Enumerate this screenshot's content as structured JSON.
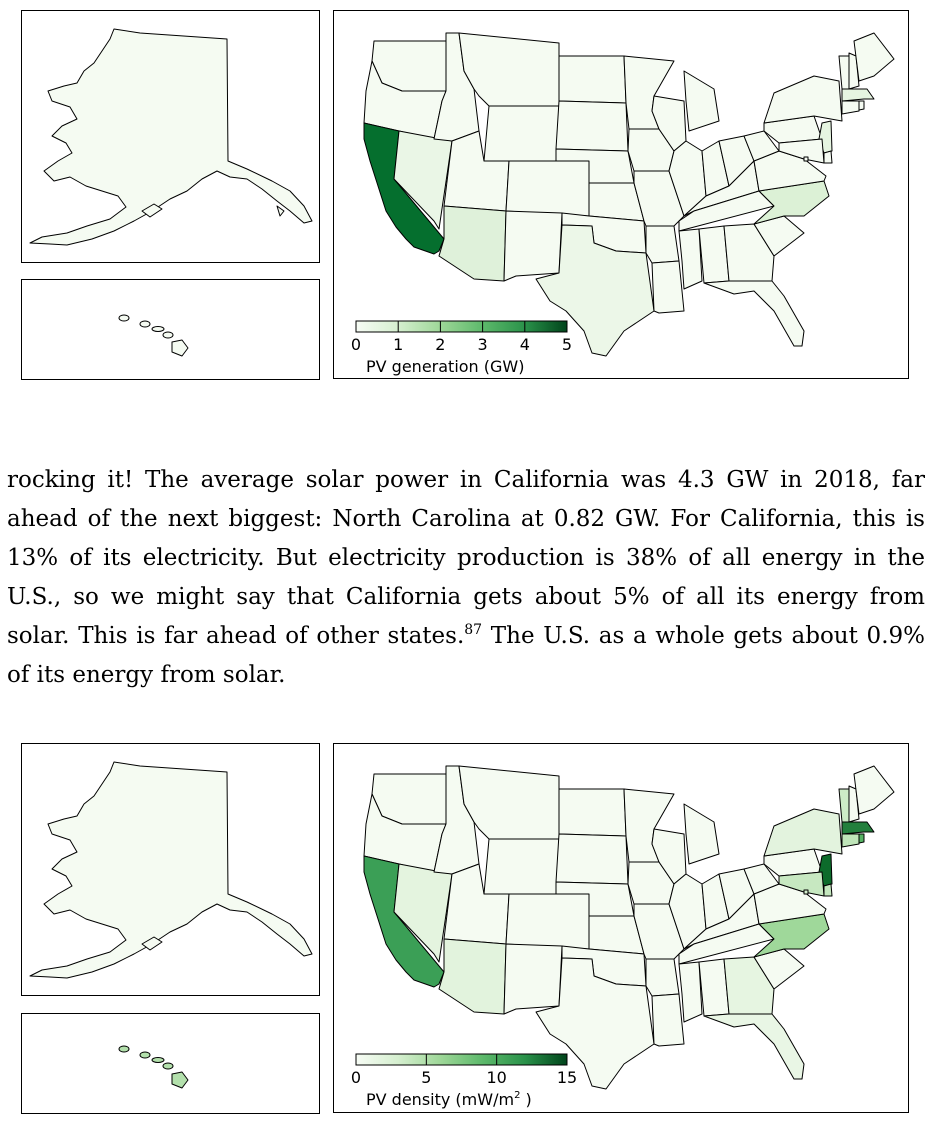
{
  "paragraph": {
    "text_before_note": "rocking it! The average solar power in California was 4.3 GW in 2018, far ahead of the next biggest: North Carolina at 0.82 GW. For California, this is 13% of its electricity. But electricity production is 38% of all energy in the U.S., so we might say that California gets about 5% of all its energy from solar. This is far ahead of other states.",
    "note_ref": "87",
    "text_after_note": " The U.S. as a whole gets about 0.9% of its energy from solar."
  },
  "maps": [
    {
      "colorbar": {
        "ticks": [
          "0",
          "1",
          "2",
          "3",
          "4",
          "5"
        ],
        "label": "PV generation (GW)",
        "min": 0,
        "max": 5,
        "colors": [
          "#f7fcf5",
          "#d5efcf",
          "#9ed798",
          "#5db96b",
          "#2a924a",
          "#00441b"
        ]
      },
      "state_fill": {
        "CA": "#056f2e",
        "NV": "#eaf6e6",
        "AZ": "#dff1da",
        "NC": "#dcf1d6",
        "TX": "#ecf7e8",
        "NJ": "#e6f5e1",
        "MA": "#e6f5e1",
        "default": "#f5fbf2"
      },
      "alaska_fill": "#f5fbf2",
      "hawaii_fill": "#f5fbf2"
    },
    {
      "colorbar": {
        "ticks": [
          "0",
          "5",
          "10",
          "15"
        ],
        "label_prefix": "PV density (mW/m",
        "label_sup": "2",
        "label_suffix": " )",
        "min": 0,
        "max": 15,
        "colors": [
          "#f7fcf5",
          "#d5efcf",
          "#9ed798",
          "#5db96b",
          "#2a924a",
          "#00441b"
        ]
      },
      "state_fill": {
        "CA": "#3b9f56",
        "NV": "#e4f4df",
        "AZ": "#e2f3dd",
        "NC": "#9fd89a",
        "NJ": "#0d6b2b",
        "MA": "#237f3d",
        "CT": "#bfe5b9",
        "DE": "#c4e7be",
        "MD": "#c7e8c1",
        "VT": "#cdebc7",
        "RI": "#55b363",
        "NY": "#e3f3de",
        "GA": "#e6f5e1",
        "FL": "#e9f6e5",
        "DC": "#d3eecd",
        "default": "#f5fbf2"
      },
      "alaska_fill": "#f5fbf2",
      "hawaii_fill": "#b3e0ac"
    }
  ]
}
